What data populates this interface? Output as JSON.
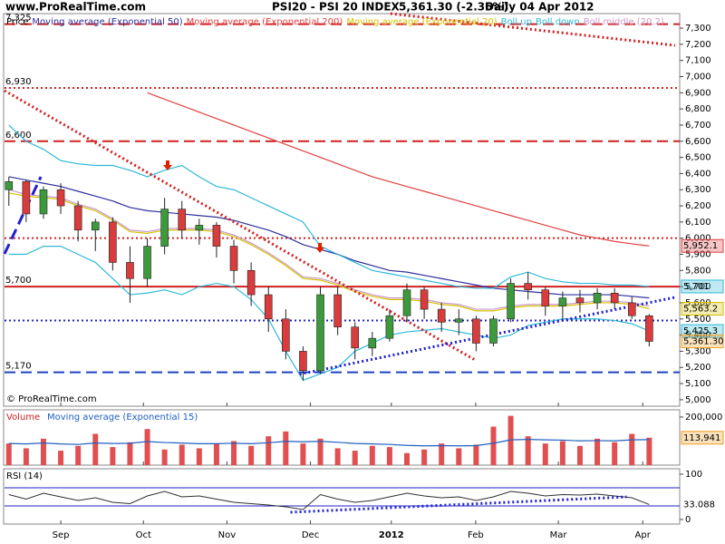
{
  "chart_data": [
    {
      "type": "candlestick",
      "site": "www.ProRealTime.com",
      "title": "PSI20 - PSI 20 INDEX",
      "subtitle": "5,361.30 (-2.36%)",
      "date_text": "Daily  04 Apr 2012",
      "legend_prefix": "Price",
      "copyright": "© ProRealTime.com",
      "x": [
        1,
        5,
        9,
        13,
        17,
        21,
        25,
        29,
        33,
        37,
        41,
        45,
        49,
        53,
        57,
        61,
        65,
        69,
        73,
        77,
        81,
        85,
        89,
        93,
        97,
        101,
        105,
        109,
        113,
        117,
        121,
        125,
        129,
        133,
        137,
        141,
        145,
        149
      ],
      "open": [
        6300,
        6350,
        6150,
        6300,
        6200,
        6050,
        6100,
        5850,
        5750,
        5950,
        6180,
        6050,
        6080,
        5950,
        5800,
        5650,
        5500,
        5300,
        5180,
        5650,
        5450,
        5320,
        5380,
        5520,
        5680,
        5560,
        5480,
        5500,
        5350,
        5500,
        5720,
        5680,
        5580,
        5630,
        5600,
        5660,
        5600,
        5520
      ],
      "high": [
        6380,
        6360,
        6320,
        6340,
        6230,
        6120,
        6130,
        5950,
        6000,
        6250,
        6230,
        6120,
        6100,
        5990,
        5850,
        5700,
        5560,
        5330,
        5700,
        5700,
        5480,
        5420,
        5560,
        5720,
        5700,
        5600,
        5560,
        5520,
        5520,
        5750,
        5790,
        5700,
        5670,
        5680,
        5690,
        5690,
        5640,
        5530
      ],
      "low": [
        6200,
        6100,
        6120,
        6150,
        5980,
        5920,
        5800,
        5600,
        5700,
        5900,
        6000,
        5960,
        5880,
        5720,
        5580,
        5420,
        5250,
        5120,
        5160,
        5400,
        5250,
        5270,
        5360,
        5480,
        5500,
        5420,
        5400,
        5300,
        5330,
        5480,
        5620,
        5520,
        5500,
        5540,
        5560,
        5560,
        5500,
        5330
      ],
      "close": [
        6350,
        6150,
        6300,
        6200,
        6050,
        6100,
        5850,
        5750,
        5950,
        6180,
        6050,
        6080,
        5950,
        5800,
        5650,
        5500,
        5300,
        5180,
        5650,
        5450,
        5320,
        5380,
        5520,
        5680,
        5560,
        5480,
        5500,
        5350,
        5500,
        5720,
        5680,
        5580,
        5630,
        5600,
        5660,
        5600,
        5520,
        5361.3
      ],
      "close_label": "5,361.30",
      "up_color": "#3c9a3c",
      "down_color": "#d83c3c",
      "xlim": [
        0,
        155
      ],
      "xticks": [
        {
          "value": 13,
          "label": "Sep"
        },
        {
          "value": 32.1,
          "label": "Oct"
        },
        {
          "value": 51.4,
          "label": "Nov"
        },
        {
          "value": 70.7,
          "label": "Dec"
        },
        89.4,
        {
          "value": 108.9,
          "label": "Feb"
        },
        {
          "value": 128,
          "label": "Mar"
        },
        {
          "value": 147.5,
          "label": "Apr"
        }
      ],
      "xtick_year_label": "2012",
      "ylim": [
        4960,
        7390
      ],
      "yticks": [
        {
          "value": 5000,
          "label": "5,000"
        },
        {
          "value": 5100,
          "label": "5,100"
        },
        {
          "value": 5200,
          "label": "5,200"
        },
        {
          "value": 5300,
          "label": "5,300"
        },
        {
          "value": 5400,
          "label": "5,400"
        },
        {
          "value": 5500,
          "label": "5,500"
        },
        {
          "value": 5600,
          "label": "5,600"
        },
        {
          "value": 5700,
          "label": "5,700"
        },
        {
          "value": 5800,
          "label": "5,800"
        },
        {
          "value": 5900,
          "label": "5,900"
        },
        {
          "value": 6000,
          "label": "6,000"
        },
        {
          "value": 6100,
          "label": "6,100"
        },
        {
          "value": 6200,
          "label": "6,200"
        },
        {
          "value": 6300,
          "label": "6,300"
        },
        {
          "value": 6400,
          "label": "6,400"
        },
        {
          "value": 6500,
          "label": "6,500"
        },
        {
          "value": 6600,
          "label": "6,600"
        },
        {
          "value": 6700,
          "label": "6,700"
        },
        {
          "value": 6800,
          "label": "6,800"
        },
        {
          "value": 6900,
          "label": "6,900"
        },
        {
          "value": 7000,
          "label": "7,000"
        },
        {
          "value": 7100,
          "label": "7,100"
        },
        {
          "value": 7200,
          "label": "7,200"
        },
        {
          "value": 7300,
          "label": "7,300"
        }
      ],
      "series": [
        {
          "name": "Moving average (Exponential 50)",
          "color": "#3030a0",
          "values": [
            6380,
            6360,
            6340,
            6320,
            6290,
            6260,
            6230,
            6190,
            6170,
            6160,
            6150,
            6140,
            6130,
            6110,
            6080,
            6050,
            6010,
            5960,
            5930,
            5900,
            5860,
            5830,
            5800,
            5790,
            5770,
            5750,
            5730,
            5710,
            5690,
            5680,
            5670,
            5660,
            5650,
            5650,
            5650,
            5650,
            5640,
            5630
          ]
        },
        {
          "name": "Moving average (Exponential 200)",
          "color": "#e04040",
          "values": [
            null,
            null,
            null,
            null,
            null,
            null,
            null,
            null,
            6900,
            6860,
            6820,
            6780,
            6740,
            6700,
            6660,
            6620,
            6580,
            6540,
            6500,
            6460,
            6420,
            6380,
            6350,
            6320,
            6290,
            6260,
            6230,
            6200,
            6170,
            6140,
            6110,
            6080,
            6050,
            6020,
            6000,
            5980,
            5965,
            5952.1
          ],
          "last_label": "5,952.1"
        },
        {
          "name": "Moving average (Exponential 20)",
          "color": "#d8c000",
          "values": [
            6280,
            6260,
            6250,
            6240,
            6200,
            6170,
            6110,
            6040,
            6030,
            6050,
            6050,
            6050,
            6040,
            6010,
            5960,
            5900,
            5830,
            5750,
            5740,
            5710,
            5670,
            5640,
            5620,
            5620,
            5610,
            5590,
            5580,
            5550,
            5550,
            5570,
            5580,
            5580,
            5580,
            5590,
            5600,
            5600,
            5590,
            5563.2
          ],
          "last_label": "5,563.2"
        },
        {
          "name": "Boll.up",
          "color": "#30b8d8",
          "values": [
            6700,
            6600,
            6550,
            6480,
            6460,
            6450,
            6450,
            6420,
            6380,
            6420,
            6450,
            6380,
            6320,
            6300,
            6250,
            6200,
            6150,
            6100,
            5950,
            5900,
            5850,
            5800,
            5780,
            5760,
            5740,
            5720,
            5700,
            5690,
            5690,
            5760,
            5790,
            5750,
            5730,
            5720,
            5720,
            5710,
            5710,
            5701
          ],
          "last_label": "5,701"
        },
        {
          "name": "Boll.down",
          "color": "#30b8d8",
          "values": [
            5900,
            5900,
            5950,
            5950,
            5900,
            5850,
            5750,
            5650,
            5660,
            5680,
            5650,
            5700,
            5720,
            5700,
            5620,
            5500,
            5300,
            5120,
            5160,
            5200,
            5300,
            5350,
            5400,
            5420,
            5430,
            5440,
            5420,
            5400,
            5380,
            5400,
            5460,
            5480,
            5500,
            5500,
            5500,
            5490,
            5470,
            5425.3
          ],
          "last_label": "5,425.3"
        },
        {
          "name": "Boll.middle (20,2)",
          "color": "#c89ac8",
          "values": [
            6300,
            6270,
            6260,
            6250,
            6210,
            6180,
            6120,
            6050,
            6040,
            6060,
            6060,
            6060,
            6050,
            6020,
            5970,
            5910,
            5840,
            5760,
            5750,
            5720,
            5680,
            5650,
            5630,
            5630,
            5620,
            5600,
            5590,
            5560,
            5560,
            5580,
            5590,
            5590,
            5590,
            5600,
            5610,
            5610,
            5600,
            5580
          ]
        }
      ],
      "levels": [
        {
          "value": 7325,
          "label": "7,325",
          "color": "#d02020",
          "style": "dashed"
        },
        {
          "value": 6930,
          "label": "6,930",
          "color": "#d02020",
          "style": "dotted"
        },
        {
          "value": 6600,
          "label": "6,600",
          "color": "#d02020",
          "style": "dashed"
        },
        {
          "value": 6000,
          "color": "#d02020",
          "style": "dotted"
        },
        {
          "value": 5700,
          "label": "5,700",
          "color": "#d02020",
          "style": "solid"
        },
        {
          "value": 5490,
          "color": "#2020c0",
          "style": "dotted"
        },
        {
          "value": 5170,
          "label": "5,170",
          "color": "#2040c0",
          "style": "dashed"
        }
      ],
      "trendlines": [
        {
          "x": [
            0,
            108.7
          ],
          "y": [
            6913,
            5247
          ],
          "color": "#d02020",
          "style": "dotted"
        },
        {
          "x": [
            68.2,
            155
          ],
          "y": [
            5158,
            5634
          ],
          "color": "#2020d0",
          "style": "dotted"
        },
        {
          "x": [
            89.2,
            155
          ],
          "y": [
            7390,
            7193
          ],
          "color": "#d02020",
          "style": "dotted"
        },
        {
          "x": [
            0,
            8.4
          ],
          "y": [
            5903,
            6380
          ],
          "color": "#2020d0",
          "style": "dashed"
        }
      ],
      "arrows": {
        "x": [
          37.7,
          72.9
        ],
        "y": [
          6425,
          5915
        ],
        "color": "#e02000"
      }
    },
    {
      "type": "bar",
      "title": "Volume",
      "color": "#e05050",
      "values": [
        90000,
        70000,
        110000,
        60000,
        80000,
        130000,
        75000,
        95000,
        150000,
        65000,
        85000,
        70000,
        90000,
        100000,
        80000,
        120000,
        140000,
        90000,
        110000,
        70000,
        60000,
        80000,
        75000,
        50000,
        65000,
        90000,
        70000,
        85000,
        160000,
        205000,
        120000,
        90000,
        100000,
        80000,
        110000,
        95000,
        130000,
        113941
      ],
      "last_label": "113,941",
      "series": [
        {
          "name": "Moving average (Exponential 15)",
          "color": "#2060c0",
          "values": [
            90000,
            88000,
            92000,
            88000,
            86000,
            92000,
            90000,
            91000,
            98000,
            94000,
            92000,
            89000,
            89000,
            91000,
            89000,
            93000,
            99000,
            97000,
            99000,
            95000,
            90000,
            88000,
            86000,
            82000,
            80000,
            81000,
            80000,
            81000,
            91000,
            105000,
            107000,
            105000,
            104000,
            101000,
            102000,
            101000,
            105000,
            106000
          ]
        }
      ],
      "ylim": [
        0,
        230000
      ],
      "yticks": [
        {
          "value": 200000,
          "label": "200,000"
        }
      ]
    },
    {
      "type": "line",
      "title": "RSI (14)",
      "color": "#303030",
      "values": [
        55,
        45,
        58,
        50,
        42,
        48,
        38,
        35,
        52,
        62,
        50,
        52,
        45,
        38,
        35,
        32,
        28,
        22,
        55,
        45,
        38,
        42,
        50,
        58,
        52,
        48,
        50,
        42,
        50,
        62,
        58,
        52,
        55,
        54,
        56,
        52,
        48,
        33.088
      ],
      "last_label": "33.088",
      "levels": [
        30,
        70
      ],
      "level_color": "#2020c0",
      "trendline": {
        "x": [
          66.1,
          143.8
        ],
        "y": [
          16,
          50
        ],
        "color": "#2020d0"
      },
      "ylim": [
        -10,
        112
      ],
      "yticks": [
        0,
        100
      ]
    }
  ]
}
